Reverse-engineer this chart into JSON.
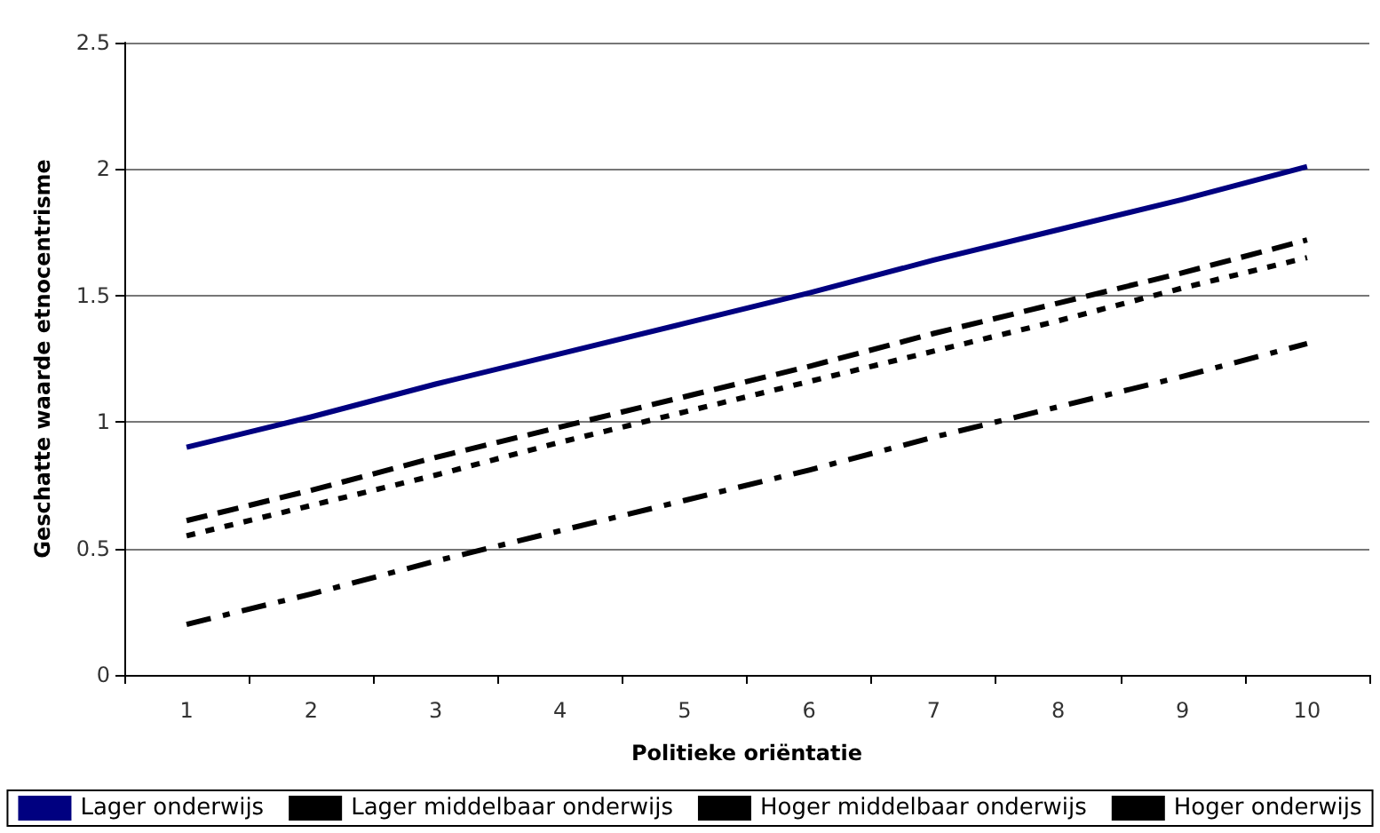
{
  "chart_data": {
    "type": "line",
    "xlabel": "Politieke oriëntatie",
    "ylabel": "Geschatte waarde etnocentrisme",
    "categories": [
      "1",
      "2",
      "3",
      "4",
      "5",
      "6",
      "7",
      "8",
      "9",
      "10"
    ],
    "series": [
      {
        "name": "Lager onderwijs",
        "color": "#000080",
        "line_style": "solid",
        "values": [
          0.9,
          1.02,
          1.15,
          1.27,
          1.39,
          1.51,
          1.64,
          1.76,
          1.88,
          2.01
        ]
      },
      {
        "name": "Lager middelbaar onderwijs",
        "color": "#000000",
        "line_style": "dashed",
        "values": [
          0.61,
          0.73,
          0.86,
          0.98,
          1.1,
          1.22,
          1.35,
          1.47,
          1.59,
          1.72
        ]
      },
      {
        "name": "Hoger middelbaar onderwijs",
        "color": "#000000",
        "line_style": "dotted",
        "values": [
          0.55,
          0.67,
          0.79,
          0.92,
          1.04,
          1.16,
          1.28,
          1.4,
          1.53,
          1.65
        ]
      },
      {
        "name": "Hoger onderwijs",
        "color": "#000000",
        "line_style": "dashdot",
        "values": [
          0.2,
          0.32,
          0.45,
          0.57,
          0.69,
          0.81,
          0.94,
          1.06,
          1.18,
          1.31
        ]
      }
    ],
    "ylim": [
      0,
      2.5
    ],
    "yticks": [
      0,
      0.5,
      1,
      1.5,
      2,
      2.5
    ],
    "grid": "y",
    "legend": "bottom",
    "marker": "none"
  }
}
